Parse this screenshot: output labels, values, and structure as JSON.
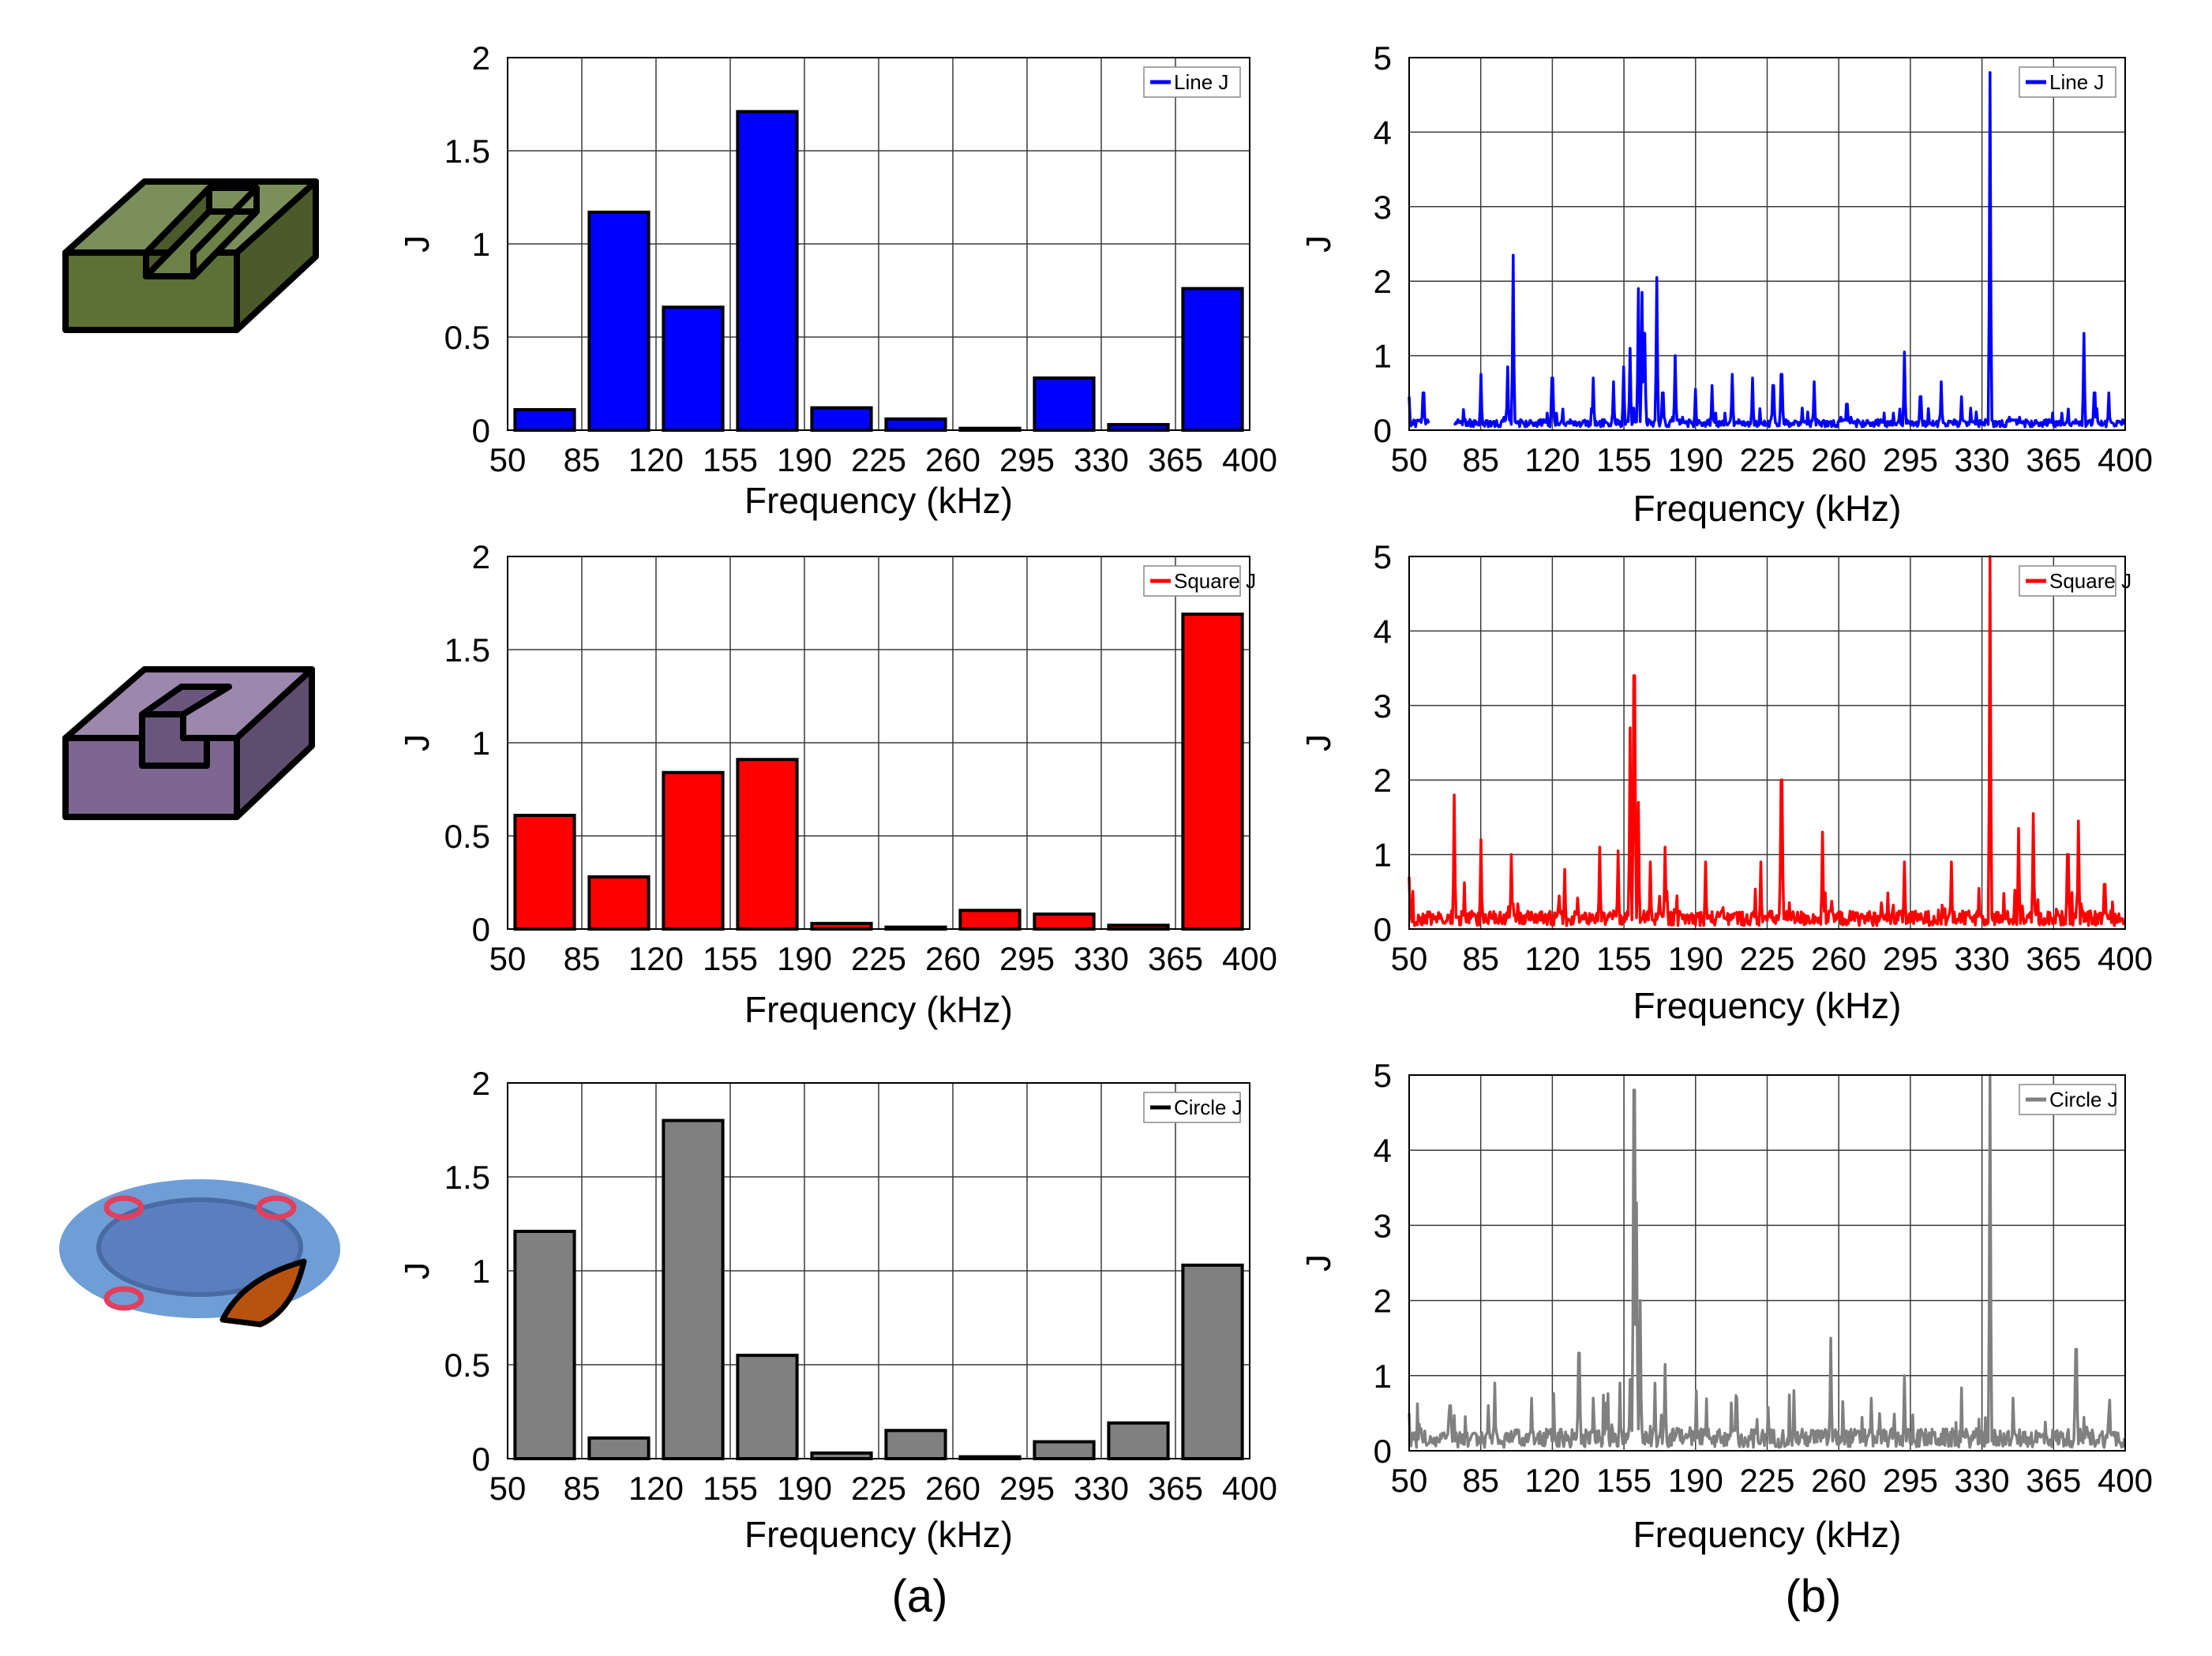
{
  "figure": {
    "panel_labels": [
      "(a)",
      "(b)"
    ]
  },
  "colors": {
    "line": "#0000ff",
    "square": "#ff0000",
    "circle": "#808080",
    "grid": "#3a3a3a",
    "bar_edge": "#000000"
  },
  "shapes": [
    {
      "name": "line-groove-block",
      "icon": "green-block-straight-slot"
    },
    {
      "name": "square-groove-block",
      "icon": "purple-block-stepped-slot"
    },
    {
      "name": "circle-plate",
      "icon": "blue-disc-with-red-rings"
    }
  ],
  "chart_data": [
    {
      "type": "bar",
      "id": "a1",
      "categories": [
        "85",
        "120",
        "155",
        "190",
        "225",
        "260",
        "295",
        "330",
        "365",
        "400"
      ],
      "series": [
        {
          "name": "Line J",
          "color": "#0000ff",
          "values": [
            0.11,
            1.17,
            0.66,
            1.71,
            0.12,
            0.06,
            0.01,
            0.28,
            0.03,
            0.76
          ]
        }
      ],
      "legend": "Line J",
      "legend_position": "top-right",
      "xlabel": "Frequency (kHz)",
      "ylabel": "J",
      "xticks": [
        "50",
        "85",
        "120",
        "155",
        "190",
        "225",
        "260",
        "295",
        "330",
        "365",
        "400"
      ],
      "yticks": [
        "0",
        "0.5",
        "1",
        "1.5",
        "2"
      ],
      "ylim": [
        0,
        2
      ],
      "grid": true
    },
    {
      "type": "line",
      "id": "b1",
      "series": [
        {
          "name": "Line J",
          "color": "#0000ff",
          "baseline": 0.15,
          "noise": 0.1,
          "gap": [
            60,
            72
          ],
          "peaks": [
            [
              50,
              0.45
            ],
            [
              57,
              0.5
            ],
            [
              85,
              0.75
            ],
            [
              98,
              0.85
            ],
            [
              101,
              2.35
            ],
            [
              120,
              0.7
            ],
            [
              140,
              0.7
            ],
            [
              150,
              0.65
            ],
            [
              155,
              0.85
            ],
            [
              158,
              1.1
            ],
            [
              162,
              1.9
            ],
            [
              164,
              1.85
            ],
            [
              165,
              1.3
            ],
            [
              171,
              2.05
            ],
            [
              174,
              0.5
            ],
            [
              180,
              1.0
            ],
            [
              190,
              0.55
            ],
            [
              198,
              0.6
            ],
            [
              208,
              0.75
            ],
            [
              218,
              0.7
            ],
            [
              228,
              0.6
            ],
            [
              232,
              0.75
            ],
            [
              248,
              0.65
            ],
            [
              264,
              0.35
            ],
            [
              292,
              1.05
            ],
            [
              300,
              0.45
            ],
            [
              310,
              0.65
            ],
            [
              320,
              0.45
            ],
            [
              334,
              4.8
            ],
            [
              380,
              1.3
            ],
            [
              385,
              0.5
            ],
            [
              392,
              0.5
            ]
          ]
        }
      ],
      "legend": "Line J",
      "legend_position": "top-right",
      "xlabel": "Frequency (kHz)",
      "ylabel": "J",
      "xticks": [
        "50",
        "85",
        "120",
        "155",
        "190",
        "225",
        "260",
        "295",
        "330",
        "365",
        "400"
      ],
      "yticks": [
        "0",
        "1",
        "2",
        "3",
        "4",
        "5"
      ],
      "xlim": [
        50,
        400
      ],
      "ylim": [
        0,
        5
      ],
      "grid": true
    },
    {
      "type": "bar",
      "id": "a2",
      "categories": [
        "85",
        "120",
        "155",
        "190",
        "225",
        "260",
        "295",
        "330",
        "365",
        "400"
      ],
      "series": [
        {
          "name": "Square J",
          "color": "#ff0000",
          "values": [
            0.61,
            0.28,
            0.84,
            0.91,
            0.03,
            0.01,
            0.1,
            0.08,
            0.02,
            1.69
          ]
        }
      ],
      "legend": "Square J",
      "legend_position": "top-right",
      "xlabel": "Frequency (kHz)",
      "ylabel": "J",
      "xticks": [
        "50",
        "85",
        "120",
        "155",
        "190",
        "225",
        "260",
        "295",
        "330",
        "365",
        "400"
      ],
      "yticks": [
        "0",
        "0.5",
        "1",
        "1.5",
        "2"
      ],
      "ylim": [
        0,
        2
      ],
      "grid": true
    },
    {
      "type": "line",
      "id": "b2",
      "series": [
        {
          "name": "Square J",
          "color": "#ff0000",
          "baseline": 0.15,
          "noise": 0.2,
          "gap": null,
          "peaks": [
            [
              50,
              0.7
            ],
            [
              72,
              1.8
            ],
            [
              85,
              1.2
            ],
            [
              100,
              1.0
            ],
            [
              126,
              0.8
            ],
            [
              143,
              1.1
            ],
            [
              152,
              1.05
            ],
            [
              158,
              2.7
            ],
            [
              160,
              3.4
            ],
            [
              162,
              1.7
            ],
            [
              168,
              0.9
            ],
            [
              175,
              1.1
            ],
            [
              195,
              0.9
            ],
            [
              222,
              0.9
            ],
            [
              232,
              2.0
            ],
            [
              252,
              1.3
            ],
            [
              292,
              0.9
            ],
            [
              315,
              0.9
            ],
            [
              334,
              5.0
            ],
            [
              348,
              1.35
            ],
            [
              355,
              1.55
            ],
            [
              372,
              1.0
            ],
            [
              377,
              1.45
            ],
            [
              390,
              0.6
            ]
          ]
        }
      ],
      "legend": "Square J",
      "legend_position": "top-right",
      "xlabel": "Frequency (kHz)",
      "ylabel": "J",
      "xticks": [
        "50",
        "85",
        "120",
        "155",
        "190",
        "225",
        "260",
        "295",
        "330",
        "365",
        "400"
      ],
      "yticks": [
        "0",
        "1",
        "2",
        "3",
        "4",
        "5"
      ],
      "xlim": [
        50,
        400
      ],
      "ylim": [
        0,
        5
      ],
      "grid": true
    },
    {
      "type": "bar",
      "id": "a3",
      "categories": [
        "85",
        "120",
        "155",
        "190",
        "225",
        "260",
        "295",
        "330",
        "365",
        "400"
      ],
      "series": [
        {
          "name": "Circle J",
          "color": "#808080",
          "values": [
            1.21,
            0.11,
            1.8,
            0.55,
            0.03,
            0.15,
            0.01,
            0.09,
            0.19,
            1.03
          ]
        }
      ],
      "legend": "Circle J",
      "legend_position": "top-right",
      "xlabel": "Frequency (kHz)",
      "ylabel": "J",
      "xticks": [
        "50",
        "85",
        "120",
        "155",
        "190",
        "225",
        "260",
        "295",
        "330",
        "365",
        "400"
      ],
      "yticks": [
        "0",
        "0.5",
        "1",
        "1.5",
        "2"
      ],
      "ylim": [
        0,
        2
      ],
      "grid": true
    },
    {
      "type": "line",
      "id": "b3",
      "series": [
        {
          "name": "Circle J",
          "color": "#808080",
          "baseline": 0.15,
          "noise": 0.25,
          "gap": null,
          "peaks": [
            [
              50,
              0.5
            ],
            [
              70,
              0.6
            ],
            [
              92,
              0.9
            ],
            [
              110,
              0.7
            ],
            [
              133,
              1.3
            ],
            [
              140,
              0.7
            ],
            [
              153,
              0.9
            ],
            [
              158,
              0.95
            ],
            [
              160,
              4.8
            ],
            [
              161,
              3.3
            ],
            [
              163,
              2.0
            ],
            [
              170,
              0.9
            ],
            [
              175,
              1.15
            ],
            [
              210,
              0.7
            ],
            [
              238,
              0.8
            ],
            [
              256,
              1.5
            ],
            [
              276,
              0.7
            ],
            [
              292,
              1.0
            ],
            [
              334,
              5.0
            ],
            [
              376,
              1.35
            ],
            [
              392,
              0.5
            ]
          ]
        }
      ],
      "legend": "Circle J",
      "legend_position": "top-right",
      "xlabel": "Frequency (kHz)",
      "ylabel": "J",
      "xticks": [
        "50",
        "85",
        "120",
        "155",
        "190",
        "225",
        "260",
        "295",
        "330",
        "365",
        "400"
      ],
      "yticks": [
        "0",
        "1",
        "2",
        "3",
        "4",
        "5"
      ],
      "xlim": [
        50,
        400
      ],
      "ylim": [
        0,
        5
      ],
      "grid": true
    }
  ]
}
